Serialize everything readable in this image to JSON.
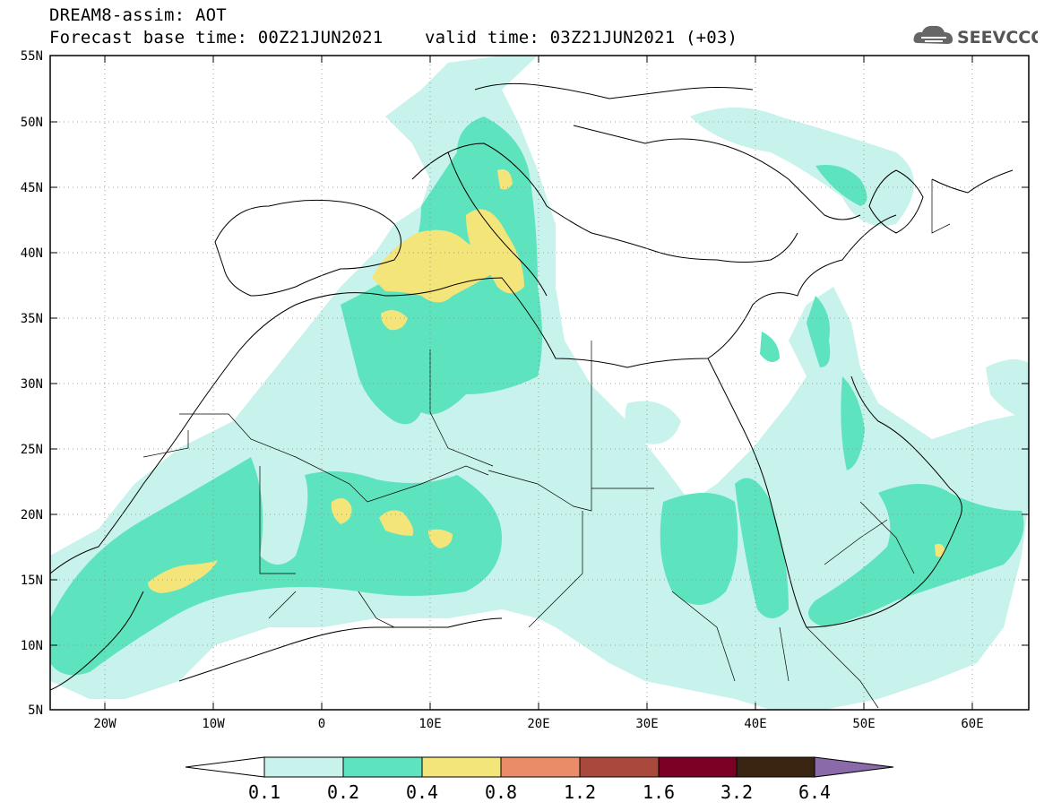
{
  "title": {
    "line1": "DREAM8-assim: AOT",
    "line2": "Forecast base time: 00Z21JUN2021    valid time: 03Z21JUN2021 (+03)"
  },
  "logo": {
    "text": "SEEVCCC",
    "icon": "cloud-icon"
  },
  "map": {
    "lat_labels": [
      "55N",
      "50N",
      "45N",
      "40N",
      "35N",
      "30N",
      "25N",
      "20N",
      "15N",
      "10N",
      "5N"
    ],
    "lon_labels": [
      "20W",
      "10W",
      "0",
      "10E",
      "20E",
      "30E",
      "40E",
      "50E",
      "60E"
    ]
  },
  "colorbar": {
    "labels": [
      "0.1",
      "0.2",
      "0.4",
      "0.8",
      "1.2",
      "1.6",
      "3.2",
      "6.4"
    ],
    "colors": [
      "#ffffff",
      "#c8f2ec",
      "#5ee3bf",
      "#f4e57a",
      "#e98c67",
      "#a9493b",
      "#7a0026",
      "#3a2512",
      "#8a6aa8"
    ]
  },
  "field_colors": {
    "aot_0_1": "#c8f2ec",
    "aot_0_2": "#5ee3bf",
    "aot_0_4": "#f4e57a"
  }
}
